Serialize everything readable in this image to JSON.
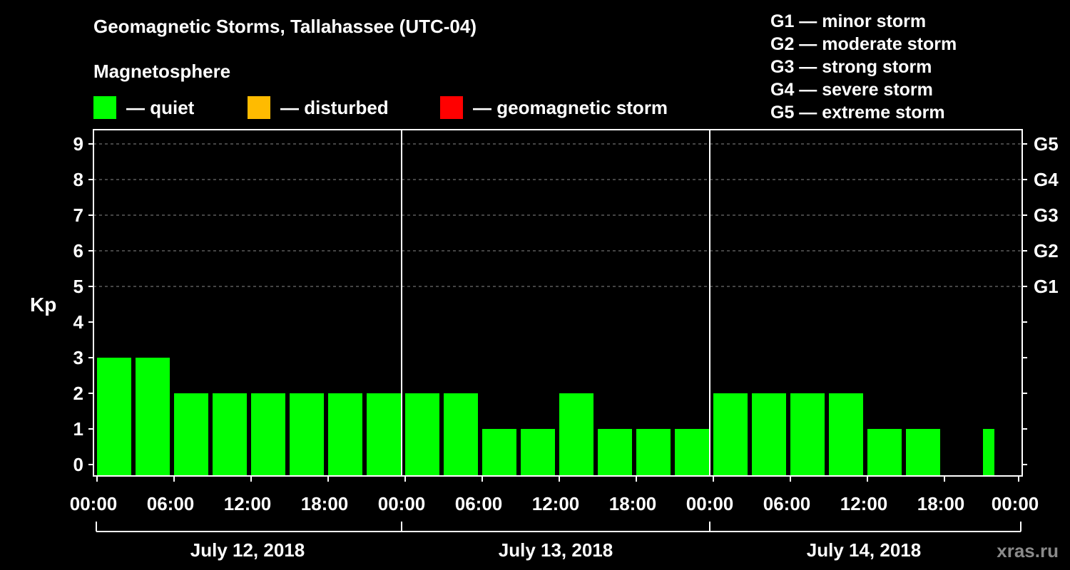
{
  "title": "Geomagnetic Storms, Tallahassee (UTC-04)",
  "magnetosphere": {
    "title": "Magnetosphere",
    "legend": [
      {
        "label": "— quiet",
        "color": "#00ff00"
      },
      {
        "label": "— disturbed",
        "color": "#ffbb00"
      },
      {
        "label": "— geomagnetic storm",
        "color": "#ff0000"
      }
    ]
  },
  "storm_levels": [
    "G1 — minor storm",
    "G2 — moderate storm",
    "G3 — strong storm",
    "G4 — severe storm",
    "G5 — extreme storm"
  ],
  "watermark": "xras.ru",
  "chart_data": {
    "type": "bar",
    "ylabel": "Kp",
    "ylim": [
      0,
      9
    ],
    "yticks": [
      "0",
      "1",
      "2",
      "3",
      "4",
      "5",
      "6",
      "7",
      "8",
      "9"
    ],
    "right_ticks": [
      {
        "value": 5,
        "label": "G1"
      },
      {
        "value": 6,
        "label": "G2"
      },
      {
        "value": 7,
        "label": "G3"
      },
      {
        "value": 8,
        "label": "G4"
      },
      {
        "value": 9,
        "label": "G5"
      }
    ],
    "xtick_labels": [
      "00:00",
      "06:00",
      "12:00",
      "18:00",
      "00:00",
      "06:00",
      "12:00",
      "18:00",
      "00:00",
      "06:00",
      "12:00",
      "18:00",
      "00:00"
    ],
    "days": [
      "July 12, 2018",
      "July 13, 2018",
      "July 14, 2018"
    ],
    "interval_hours": 3,
    "values": [
      3,
      3,
      2,
      2,
      2,
      2,
      2,
      2,
      2,
      2,
      1,
      1,
      2,
      1,
      1,
      1,
      2,
      2,
      2,
      2,
      1,
      1,
      0,
      1
    ],
    "last_bar_partial": true,
    "bar_color": "#00ff00",
    "grid": "dashed horizontal at 5-9"
  }
}
